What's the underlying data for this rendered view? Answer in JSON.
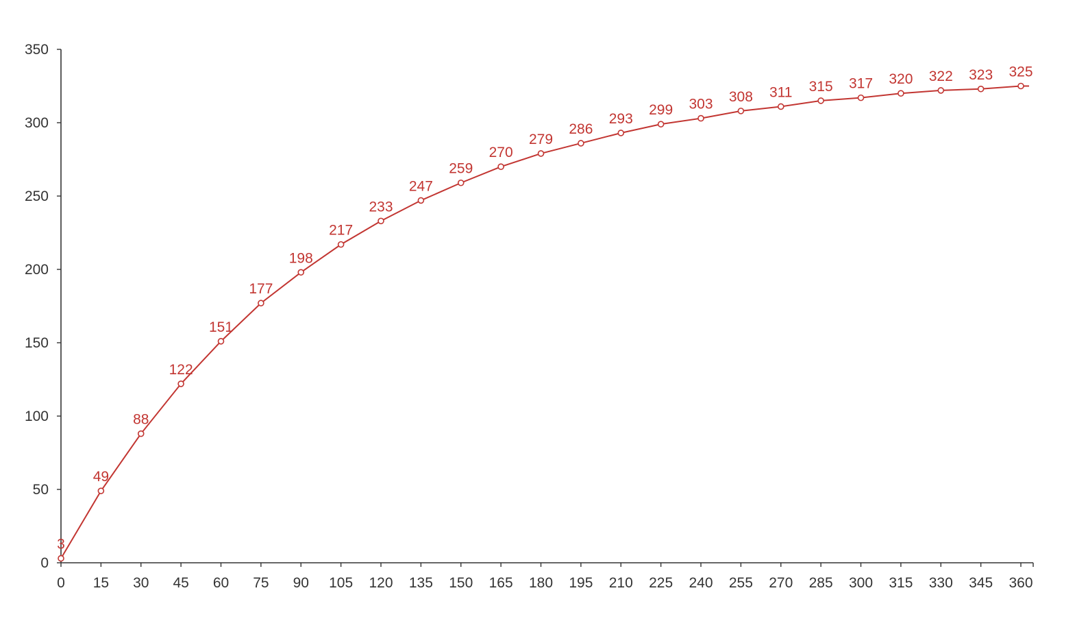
{
  "colors": {
    "series": "#c23531",
    "axis": "#333333",
    "background": "#ffffff"
  },
  "chart_data": {
    "type": "line",
    "title": "",
    "xlabel": "",
    "ylabel": "",
    "grid": false,
    "legend": "none",
    "xlim": [
      0,
      360
    ],
    "ylim": [
      0,
      350
    ],
    "x_ticks": [
      0,
      15,
      30,
      45,
      60,
      75,
      90,
      105,
      120,
      135,
      150,
      165,
      180,
      195,
      210,
      225,
      240,
      255,
      270,
      285,
      300,
      315,
      330,
      345,
      360
    ],
    "y_ticks": [
      0,
      50,
      100,
      150,
      200,
      250,
      300,
      350
    ],
    "x": [
      0,
      15,
      30,
      45,
      60,
      75,
      90,
      105,
      120,
      135,
      150,
      165,
      180,
      195,
      210,
      225,
      240,
      255,
      270,
      285,
      300,
      315,
      330,
      345,
      360
    ],
    "series": [
      {
        "values": [
          3,
          49,
          88,
          122,
          151,
          177,
          198,
          217,
          233,
          247,
          259,
          270,
          279,
          286,
          293,
          299,
          303,
          308,
          311,
          315,
          317,
          320,
          322,
          323,
          325
        ],
        "data_labels": [
          "3",
          "49",
          "88",
          "122",
          "151",
          "177",
          "198",
          "217",
          "233",
          "247",
          "259",
          "270",
          "279",
          "286",
          "293",
          "299",
          "303",
          "308",
          "311",
          "315",
          "317",
          "320",
          "322",
          "323",
          "325"
        ]
      }
    ]
  }
}
